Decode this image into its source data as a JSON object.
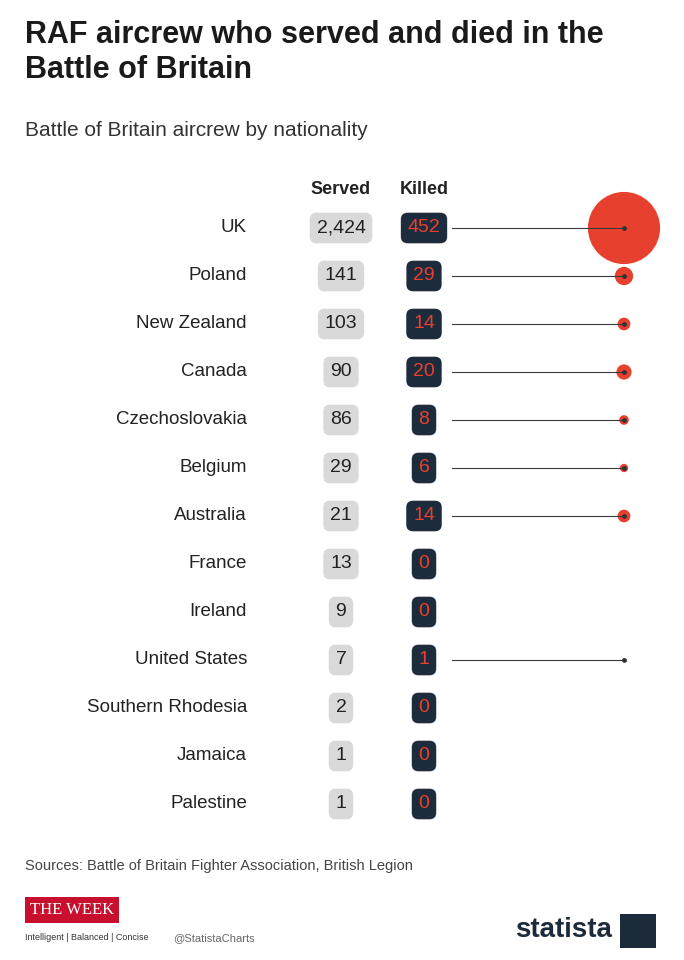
{
  "chart_data": {
    "type": "dot",
    "title": "RAF aircrew who served and died in the Battle of Britain",
    "subtitle": "Battle of Britain aircrew by nationality",
    "categories": [
      "UK",
      "Poland",
      "New Zealand",
      "Canada",
      "Czechoslovakia",
      "Belgium",
      "Australia",
      "France",
      "Ireland",
      "United States",
      "Southern Rhodesia",
      "Jamaica",
      "Palestine"
    ],
    "series": [
      {
        "name": "Served",
        "color": "#d9d9d9",
        "values": [
          2424,
          141,
          103,
          90,
          86,
          29,
          21,
          13,
          9,
          7,
          2,
          1,
          1
        ],
        "value_labels": [
          "2,424",
          "141",
          "103",
          "90",
          "86",
          "29",
          "21",
          "13",
          "9",
          "7",
          "2",
          "1",
          "1"
        ]
      },
      {
        "name": "Killed",
        "color": "#e8402f",
        "values": [
          452,
          29,
          14,
          20,
          8,
          6,
          14,
          0,
          0,
          1,
          0,
          0,
          0
        ]
      }
    ],
    "data_labels": true,
    "tick_labels": false
  },
  "footer": {
    "source": "Sources: Battle of Britain Fighter Association, British Legion",
    "logo": "THE WEEK",
    "tagline": "Intelligent | Balanced | Concise",
    "handle": "@StatistaCharts",
    "brand": "statista"
  }
}
